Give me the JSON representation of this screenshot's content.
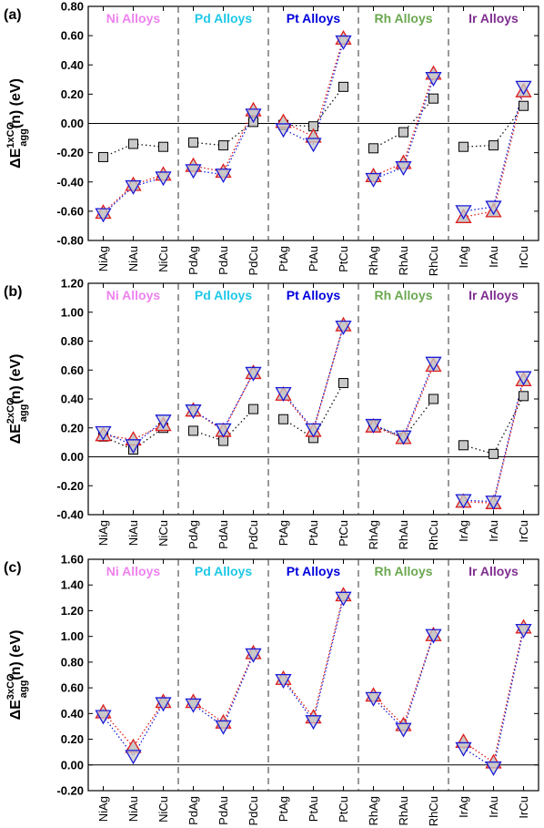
{
  "colors": {
    "Ni": "#ee82ee",
    "Pd": "#1ec8e6",
    "Pt": "#0000dd",
    "Rh": "#6aa84f",
    "Ir": "#7f2f8f",
    "triangle_up": "#e01b1b",
    "triangle_down": "#1b1bd8",
    "square_fill": "#c8c8c8",
    "square_series": "#111111"
  },
  "chart_data": [
    {
      "type": "scatter",
      "panel_label": "(a)",
      "ylabel_main": "ΔE",
      "ylabel_sup": "1xCO",
      "ylabel_sub": "agg",
      "ylabel_tail": "(n) (eV)",
      "ylim": [
        -0.8,
        0.8
      ],
      "yticks": [
        "-0.80",
        "-0.60",
        "-0.40",
        "-0.20",
        "0.00",
        "0.20",
        "0.40",
        "0.60",
        "0.80"
      ],
      "yvalues": [
        -0.8,
        -0.6,
        -0.4,
        -0.2,
        0,
        0.2,
        0.4,
        0.6,
        0.8
      ],
      "groups": [
        {
          "label": "Ni Alloys",
          "color_key": "Ni",
          "categories": [
            "NiAg",
            "NiAu",
            "NiCu"
          ],
          "up": [
            -0.61,
            -0.42,
            -0.35
          ],
          "down": [
            -0.62,
            -0.43,
            -0.37
          ],
          "square": [
            -0.23,
            -0.14,
            -0.16
          ]
        },
        {
          "label": "Pd Alloys",
          "color_key": "Pd",
          "categories": [
            "PdAg",
            "PdAu",
            "PdCu"
          ],
          "up": [
            -0.29,
            -0.33,
            0.09
          ],
          "down": [
            -0.32,
            -0.35,
            0.06
          ],
          "square": [
            -0.13,
            -0.15,
            0.01
          ]
        },
        {
          "label": "Pt Alloys",
          "color_key": "Pt",
          "categories": [
            "PtAg",
            "PtAu",
            "PtCu"
          ],
          "up": [
            0.01,
            -0.09,
            0.58
          ],
          "down": [
            -0.04,
            -0.14,
            0.56
          ],
          "square": [
            -0.01,
            -0.02,
            0.25
          ]
        },
        {
          "label": "Rh Alloys",
          "color_key": "Rh",
          "categories": [
            "RhAg",
            "RhAu",
            "RhCu"
          ],
          "up": [
            -0.36,
            -0.27,
            0.34
          ],
          "down": [
            -0.38,
            -0.3,
            0.31
          ],
          "square": [
            -0.17,
            -0.06,
            0.17
          ]
        },
        {
          "label": "Ir Alloys",
          "color_key": "Ir",
          "categories": [
            "IrAg",
            "IrAu",
            "IrCu"
          ],
          "up": [
            -0.64,
            -0.6,
            0.22
          ],
          "down": [
            -0.6,
            -0.57,
            0.25
          ],
          "square": [
            -0.16,
            -0.15,
            0.12
          ]
        }
      ]
    },
    {
      "type": "scatter",
      "panel_label": "(b)",
      "ylabel_main": "ΔE",
      "ylabel_sup": "2xCO",
      "ylabel_sub": "agg",
      "ylabel_tail": "(n) (eV)",
      "ylim": [
        -0.4,
        1.2
      ],
      "yticks": [
        "-0.40",
        "-0.20",
        "0.00",
        "0.20",
        "0.40",
        "0.60",
        "0.80",
        "1.00",
        "1.20"
      ],
      "yvalues": [
        -0.4,
        -0.2,
        0,
        0.2,
        0.4,
        0.6,
        0.8,
        1.0,
        1.2
      ],
      "groups": [
        {
          "label": "Ni Alloys",
          "color_key": "Ni",
          "categories": [
            "NiAg",
            "NiAu",
            "NiCu"
          ],
          "up": [
            0.15,
            0.12,
            0.22
          ],
          "down": [
            0.17,
            0.08,
            0.25
          ],
          "square": [
            0.14,
            0.05,
            0.2
          ]
        },
        {
          "label": "Pd Alloys",
          "color_key": "Pd",
          "categories": [
            "PdAg",
            "PdAu",
            "PdCu"
          ],
          "up": [
            0.32,
            0.18,
            0.58
          ],
          "down": [
            0.32,
            0.19,
            0.58
          ],
          "square": [
            0.18,
            0.11,
            0.33
          ]
        },
        {
          "label": "Pt Alloys",
          "color_key": "Pt",
          "categories": [
            "PtAg",
            "PtAu",
            "PtCu"
          ],
          "up": [
            0.43,
            0.18,
            0.91
          ],
          "down": [
            0.44,
            0.19,
            0.9
          ],
          "square": [
            0.26,
            0.13,
            0.51
          ]
        },
        {
          "label": "Rh Alloys",
          "color_key": "Rh",
          "categories": [
            "RhAg",
            "RhAu",
            "RhCu"
          ],
          "up": [
            0.21,
            0.13,
            0.63
          ],
          "down": [
            0.22,
            0.14,
            0.65
          ],
          "square": [
            0.22,
            0.13,
            0.4
          ]
        },
        {
          "label": "Ir Alloys",
          "color_key": "Ir",
          "categories": [
            "IrAg",
            "IrAu",
            "IrCu"
          ],
          "up": [
            -0.31,
            -0.32,
            0.53
          ],
          "down": [
            -0.3,
            -0.31,
            0.55
          ],
          "square": [
            0.08,
            0.02,
            0.42
          ]
        }
      ]
    },
    {
      "type": "scatter",
      "panel_label": "(c)",
      "ylabel_main": "ΔE",
      "ylabel_sup": "3xCO",
      "ylabel_sub": "agg",
      "ylabel_tail": "(n) (eV)",
      "ylim": [
        -0.2,
        1.6
      ],
      "yticks": [
        "-0.20",
        "0.00",
        "0.20",
        "0.40",
        "0.60",
        "0.80",
        "1.00",
        "1.20",
        "1.40",
        "1.60"
      ],
      "yvalues": [
        -0.2,
        0,
        0.2,
        0.4,
        0.6,
        0.8,
        1.0,
        1.2,
        1.4,
        1.6
      ],
      "groups": [
        {
          "label": "Ni Alloys",
          "color_key": "Ni",
          "categories": [
            "NiAg",
            "NiAu",
            "NiCu"
          ],
          "up": [
            0.41,
            0.14,
            0.49
          ],
          "down": [
            0.38,
            0.07,
            0.48
          ],
          "square": null
        },
        {
          "label": "Pd Alloys",
          "color_key": "Pd",
          "categories": [
            "PdAg",
            "PdAu",
            "PdCu"
          ],
          "up": [
            0.49,
            0.33,
            0.87
          ],
          "down": [
            0.47,
            0.3,
            0.86
          ],
          "square": null
        },
        {
          "label": "Pt Alloys",
          "color_key": "Pt",
          "categories": [
            "PtAg",
            "PtAu",
            "PtCu"
          ],
          "up": [
            0.67,
            0.37,
            1.32
          ],
          "down": [
            0.66,
            0.34,
            1.3
          ],
          "square": null
        },
        {
          "label": "Rh Alloys",
          "color_key": "Rh",
          "categories": [
            "RhAg",
            "RhAu",
            "RhCu"
          ],
          "up": [
            0.54,
            0.31,
            1.01
          ],
          "down": [
            0.52,
            0.28,
            1.01
          ],
          "square": null
        },
        {
          "label": "Ir Alloys",
          "color_key": "Ir",
          "categories": [
            "IrAg",
            "IrAu",
            "IrCu"
          ],
          "up": [
            0.18,
            0.02,
            1.07
          ],
          "down": [
            0.13,
            -0.02,
            1.05
          ],
          "square": null
        }
      ]
    }
  ]
}
